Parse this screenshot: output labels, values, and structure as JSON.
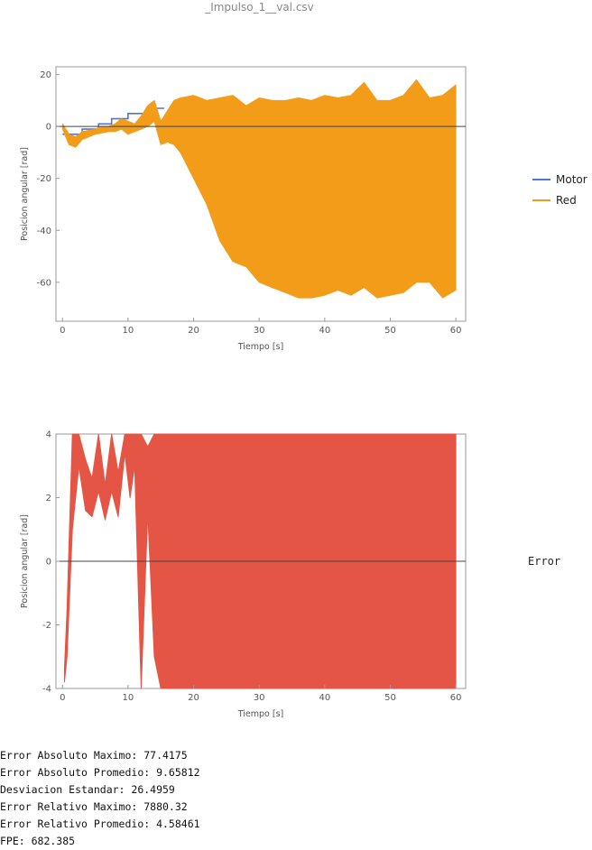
{
  "page_title": "_Impulso_1__val.csv",
  "legend": {
    "top_entries": [
      {
        "name": "Motor",
        "color": "#4a78d6"
      },
      {
        "name": "Red",
        "color": "#f39c19"
      }
    ],
    "bottom_entry": "Error"
  },
  "chart_data": [
    {
      "type": "area",
      "xlabel": "Tiempo [s]",
      "ylabel": "Posicion angular [rad]",
      "xlim": [
        -1,
        61.5
      ],
      "ylim": [
        -75,
        23
      ],
      "xticks": [
        0,
        10,
        20,
        30,
        40,
        50,
        60
      ],
      "yticks": [
        20,
        0,
        -20,
        -40,
        -60
      ],
      "series": [
        {
          "name": "Motor",
          "type": "step",
          "color": "#4a78d6",
          "x": [
            0,
            3,
            3,
            5.5,
            5.5,
            7.5,
            7.5,
            10,
            10,
            13,
            13,
            15.5
          ],
          "y": [
            -3,
            -3,
            -1,
            -1,
            1,
            1,
            3,
            3,
            5,
            5,
            7,
            7
          ]
        },
        {
          "name": "Red",
          "type": "band",
          "color": "#f39c19",
          "x": [
            0,
            1,
            2,
            3,
            4,
            5,
            6,
            7,
            8,
            9,
            10,
            11,
            12,
            13,
            14,
            15,
            16,
            17,
            18,
            20,
            22,
            24,
            26,
            28,
            30,
            32,
            34,
            36,
            38,
            40,
            42,
            44,
            46,
            48,
            50,
            52,
            54,
            56,
            58,
            60
          ],
          "upper": [
            1,
            -3,
            -4,
            -2,
            -1.5,
            -1,
            0,
            0,
            1,
            3,
            2,
            1,
            4,
            8,
            10,
            2,
            6,
            10,
            11,
            12,
            10,
            11,
            12,
            8,
            11,
            10,
            10,
            11,
            10,
            12,
            11,
            12,
            17,
            10,
            10,
            12,
            18,
            11,
            12,
            16
          ],
          "lower": [
            -1,
            -7,
            -8,
            -5,
            -4,
            -3,
            -2.5,
            -2,
            -2,
            -1,
            -3,
            -2,
            -1,
            0,
            2,
            -7,
            -6,
            -7,
            -10,
            -20,
            -30,
            -44,
            -52,
            -54,
            -60,
            -62,
            -64,
            -66,
            -66,
            -65,
            -63,
            -65,
            -62,
            -66,
            -65,
            -64,
            -60,
            -60,
            -66,
            -63
          ]
        }
      ]
    },
    {
      "type": "area",
      "xlabel": "Tiempo [s]",
      "ylabel": "Posicion angular [rad]",
      "xlim": [
        -1,
        61.5
      ],
      "ylim": [
        -4,
        4
      ],
      "xticks": [
        0,
        10,
        20,
        30,
        40,
        50,
        60
      ],
      "yticks": [
        4,
        2,
        0,
        -2,
        -4
      ],
      "series": [
        {
          "name": "Error",
          "type": "band",
          "color": "#e45545",
          "x": [
            0.3,
            0.7,
            1.5,
            2.5,
            3.5,
            4.5,
            5.5,
            6.5,
            7.5,
            8.5,
            9.5,
            10.3,
            11,
            12,
            13,
            14,
            15,
            16,
            20,
            30,
            40,
            50,
            60
          ],
          "upper": [
            -3.4,
            -1.5,
            4,
            4,
            3.2,
            2.6,
            4,
            2.4,
            4,
            2.8,
            4,
            4,
            4,
            4,
            3.6,
            4,
            4,
            4,
            4,
            4,
            4,
            4,
            4
          ],
          "lower": [
            -3.8,
            -3,
            1,
            3,
            1.6,
            1.4,
            2.2,
            1.3,
            2.2,
            1.4,
            3.4,
            2,
            3,
            -4,
            1.5,
            -3,
            -4,
            -4,
            -4,
            -4,
            -4,
            -4,
            -4
          ]
        }
      ]
    }
  ],
  "stats": [
    "Error Absoluto Maximo: 77.4175",
    "Error Absoluto Promedio: 9.65812",
    "Desviacion Estandar: 26.4959",
    "Error Relativo Maximo: 7880.32",
    "Error Relativo Promedio: 4.58461",
    "FPE: 682.385"
  ]
}
